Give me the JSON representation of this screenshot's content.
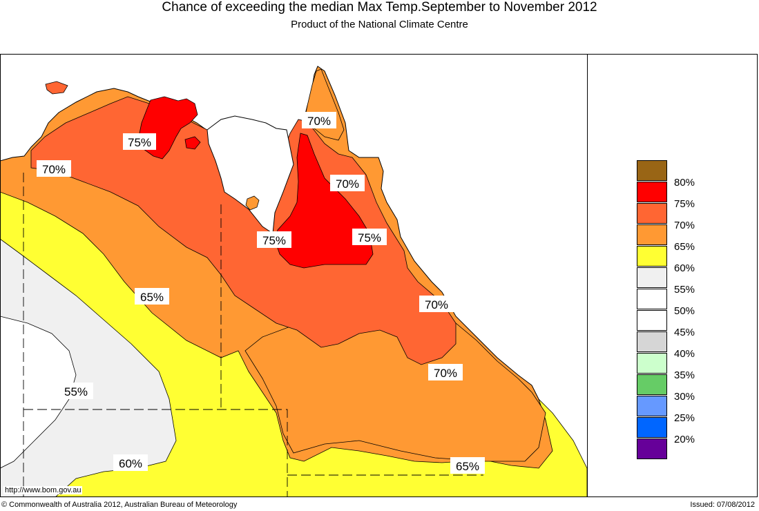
{
  "header": {
    "title": "Chance of exceeding the median Max Temp.September to November 2012",
    "subtitle": "Product of the National Climate Centre"
  },
  "map": {
    "labels": [
      {
        "text": "75%"
      },
      {
        "text": "70%"
      },
      {
        "text": "70%"
      },
      {
        "text": "70%"
      },
      {
        "text": "75%"
      },
      {
        "text": "75%"
      },
      {
        "text": "65%"
      },
      {
        "text": "70%"
      },
      {
        "text": "70%"
      },
      {
        "text": "55%"
      },
      {
        "text": "60%"
      },
      {
        "text": "65%"
      }
    ]
  },
  "legend": {
    "items": [
      {
        "label": "80%",
        "color": "#996515"
      },
      {
        "label": "75%",
        "color": "#ff0000"
      },
      {
        "label": "70%",
        "color": "#ff6633"
      },
      {
        "label": "65%",
        "color": "#ff9933"
      },
      {
        "label": "60%",
        "color": "#ffff33"
      },
      {
        "label": "55%",
        "color": "#f0f0f0"
      },
      {
        "label": "50%",
        "color": "#ffffff"
      },
      {
        "label": "45%",
        "color": "#ffffff"
      },
      {
        "label": "40%",
        "color": "#d6d6d6"
      },
      {
        "label": "35%",
        "color": "#ccffcc"
      },
      {
        "label": "30%",
        "color": "#66cc66"
      },
      {
        "label": "25%",
        "color": "#6699ff"
      },
      {
        "label": "20%",
        "color": "#0066ff"
      },
      {
        "label": "",
        "color": "#660099"
      }
    ]
  },
  "footer": {
    "url": "http://www.bom.gov.au",
    "copyright": "© Commonwealth of Australia 2012, Australian Bureau of Meteorology",
    "issued": "Issued: 07/08/2012"
  }
}
